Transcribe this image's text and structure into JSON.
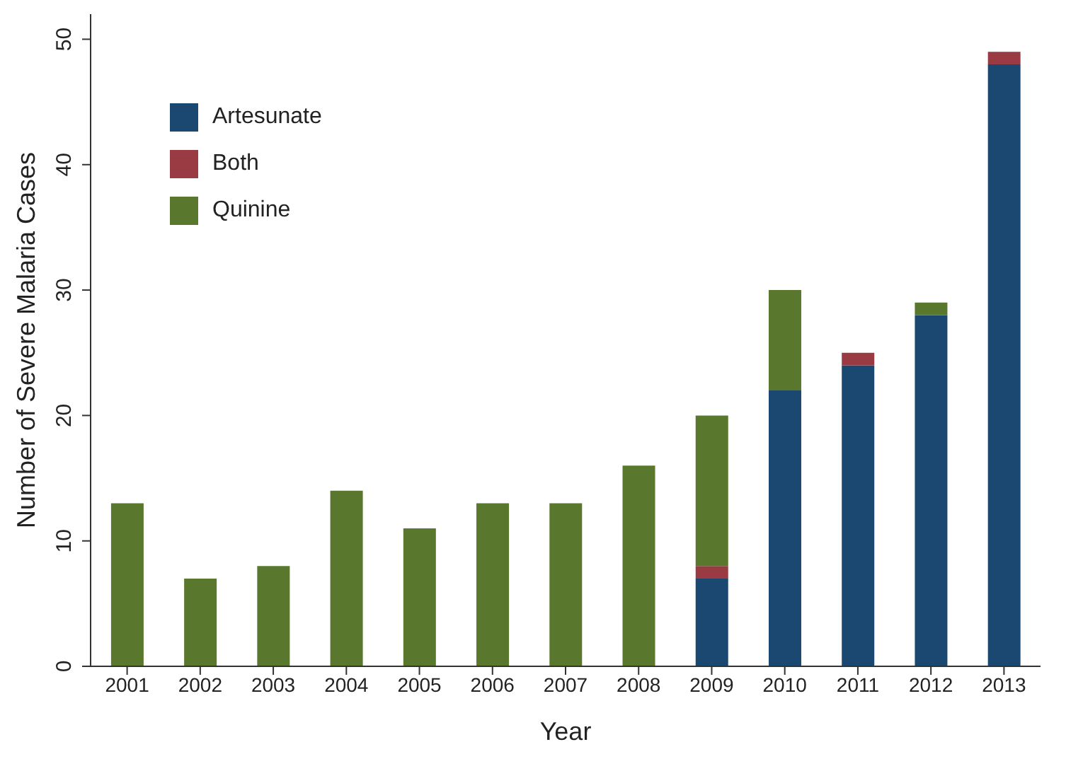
{
  "chart_data": {
    "type": "bar",
    "stacked": true,
    "xlabel": "Year",
    "ylabel": "Number of Severe Malaria Cases",
    "categories": [
      "2001",
      "2002",
      "2003",
      "2004",
      "2005",
      "2006",
      "2007",
      "2008",
      "2009",
      "2010",
      "2011",
      "2012",
      "2013"
    ],
    "series": [
      {
        "name": "Artesunate",
        "color": "#1a4870",
        "values": [
          null,
          null,
          null,
          null,
          null,
          null,
          null,
          null,
          7,
          22,
          24,
          28,
          48
        ]
      },
      {
        "name": "Both",
        "color": "#9a3a42",
        "values": [
          null,
          null,
          null,
          null,
          null,
          null,
          null,
          null,
          1,
          null,
          1,
          null,
          1
        ]
      },
      {
        "name": "Quinine",
        "color": "#5a772e",
        "values": [
          13,
          7,
          8,
          14,
          11,
          13,
          13,
          16,
          12,
          8,
          null,
          1,
          null
        ]
      }
    ],
    "ylim": [
      0,
      52
    ],
    "yticks": [
      0,
      10,
      20,
      30,
      40,
      50
    ],
    "grid": false,
    "legend": "top left"
  }
}
